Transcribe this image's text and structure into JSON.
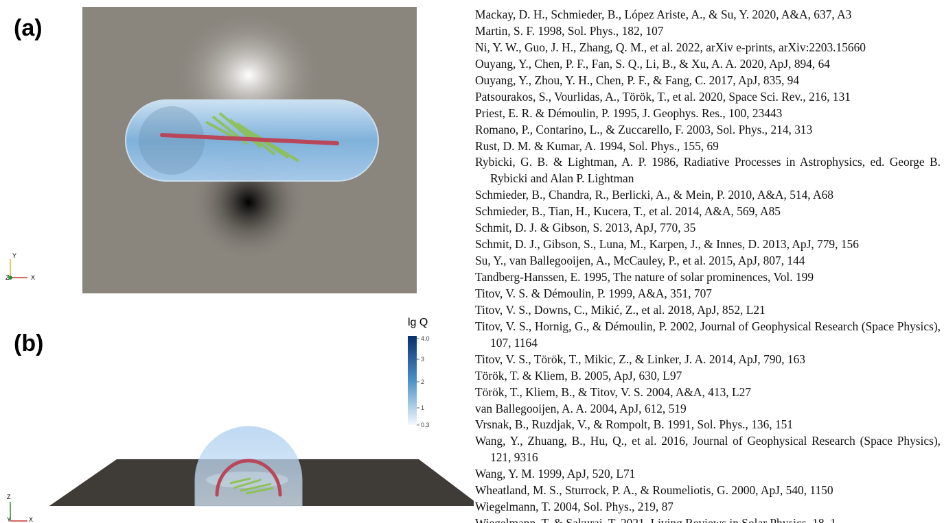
{
  "figure": {
    "panels": [
      {
        "label": "(a)",
        "axes": [
          "Y",
          "Z",
          "X"
        ]
      },
      {
        "label": "(b)",
        "axes": [
          "Z",
          "Y",
          "X"
        ],
        "colorbar": {
          "title": "lg Q",
          "ticks": [
            "4.0",
            "3",
            "2",
            "1",
            "0.3"
          ]
        }
      }
    ]
  },
  "references": [
    "Mackay, D. H., Schmieder, B., López Ariste, A., & Su, Y. 2020, A&A, 637, A3",
    "Martin, S. F. 1998, Sol. Phys., 182, 107",
    "Ni, Y. W., Guo, J. H., Zhang, Q. M., et al. 2022, arXiv e-prints, arXiv:2203.15660",
    "Ouyang, Y., Chen, P. F., Fan, S. Q., Li, B., & Xu, A. A. 2020, ApJ, 894, 64",
    "Ouyang, Y., Zhou, Y. H., Chen, P. F., & Fang, C. 2017, ApJ, 835, 94",
    "Patsourakos, S., Vourlidas, A., Török, T., et al. 2020, Space Sci. Rev., 216, 131",
    "Priest, E. R. & Démoulin, P. 1995, J. Geophys. Res., 100, 23443",
    "Romano, P., Contarino, L., & Zuccarello, F. 2003, Sol. Phys., 214, 313",
    "Rust, D. M. & Kumar, A. 1994, Sol. Phys., 155, 69",
    "Rybicki, G. B. & Lightman, A. P. 1986, Radiative Processes in Astrophysics, ed. George B. Rybicki and Alan P. Lightman",
    "Schmieder, B., Chandra, R., Berlicki, A., & Mein, P. 2010, A&A, 514, A68",
    "Schmieder, B., Tian, H., Kucera, T., et al. 2014, A&A, 569, A85",
    "Schmit, D. J. & Gibson, S. 2013, ApJ, 770, 35",
    "Schmit, D. J., Gibson, S., Luna, M., Karpen, J., & Innes, D. 2013, ApJ, 779, 156",
    "Su, Y., van Ballegooijen, A., McCauley, P., et al. 2015, ApJ, 807, 144",
    "Tandberg-Hanssen, E. 1995, The nature of solar prominences, Vol. 199",
    "Titov, V. S. & Démoulin, P. 1999, A&A, 351, 707",
    "Titov, V. S., Downs, C., Mikić, Z., et al. 2018, ApJ, 852, L21",
    "Titov, V. S., Hornig, G., & Démoulin, P. 2002, Journal of Geophysical Research (Space Physics), 107, 1164",
    "Titov, V. S., Török, T., Mikic, Z., & Linker, J. A. 2014, ApJ, 790, 163",
    "Török, T. & Kliem, B. 2005, ApJ, 630, L97",
    "Török, T., Kliem, B., & Titov, V. S. 2004, A&A, 413, L27",
    "van Ballegooijen, A. A. 2004, ApJ, 612, 519",
    "Vrsnak, B., Ruzdjak, V., & Rompolt, B. 1991, Sol. Phys., 136, 151",
    "Wang, Y., Zhuang, B., Hu, Q., et al. 2016, Journal of Geophysical Research (Space Physics), 121, 9316",
    "Wang, Y. M. 1999, ApJ, 520, L71",
    "Wheatland, M. S., Sturrock, P. A., & Roumeliotis, G. 2000, ApJ, 540, 1150",
    "Wiegelmann, T. 2004, Sol. Phys., 219, 87",
    "Wiegelmann, T. & Sakurai, T. 2021, Living Reviews in Solar Physics, 18, 1"
  ]
}
